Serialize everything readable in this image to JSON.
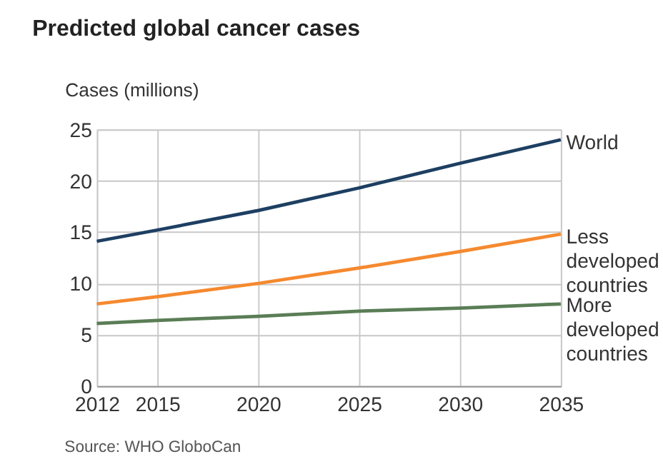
{
  "chart_data": {
    "type": "line",
    "title": "Predicted global cancer cases",
    "ylabel": "Cases (millions)",
    "x": [
      2012,
      2015,
      2020,
      2025,
      2030,
      2035
    ],
    "series": [
      {
        "name": "World",
        "color": "#1d3f62",
        "values": [
          14.1,
          15.2,
          17.1,
          19.3,
          21.7,
          24.0
        ]
      },
      {
        "name": "Less developed countries",
        "color": "#f5892f",
        "values": [
          8.0,
          8.7,
          10.0,
          11.5,
          13.1,
          14.8
        ]
      },
      {
        "name": "More developed countries",
        "color": "#5a7d56",
        "values": [
          6.1,
          6.4,
          6.8,
          7.3,
          7.6,
          8.0
        ]
      }
    ],
    "xlim": [
      2012,
      2035
    ],
    "xticks": [
      2012,
      2015,
      2020,
      2025,
      2030,
      2035
    ],
    "ylim": [
      0,
      25
    ],
    "yticks": [
      0,
      5,
      10,
      15,
      20,
      25
    ],
    "grid": true,
    "legend": false,
    "marker": "none",
    "line_style": "solid",
    "annotations": [
      "Source: WHO GloboCan"
    ]
  }
}
